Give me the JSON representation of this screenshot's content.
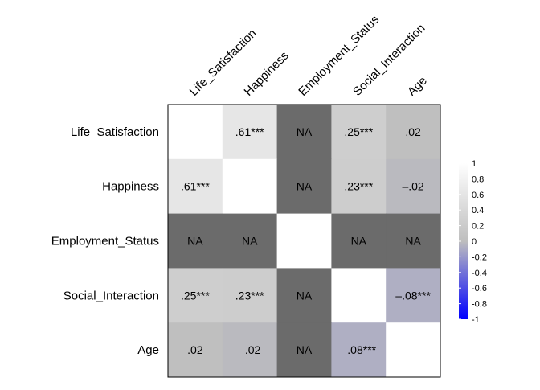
{
  "chart_data": {
    "type": "heatmap",
    "title": "",
    "variables": [
      "Life_Satisfaction",
      "Happiness",
      "Employment_Status",
      "Social_Interaction",
      "Age"
    ],
    "matrix": [
      [
        null,
        0.61,
        null,
        0.25,
        0.02
      ],
      [
        0.61,
        null,
        null,
        0.23,
        -0.02
      ],
      [
        null,
        null,
        null,
        null,
        null
      ],
      [
        0.25,
        0.23,
        null,
        null,
        -0.08
      ],
      [
        0.02,
        -0.02,
        null,
        -0.08,
        null
      ]
    ],
    "labels": [
      [
        "",
        ".61***",
        "NA",
        ".25***",
        ".02"
      ],
      [
        ".61***",
        "",
        "NA",
        ".23***",
        "–.02"
      ],
      [
        "NA",
        "NA",
        "",
        "NA",
        "NA"
      ],
      [
        ".25***",
        ".23***",
        "NA",
        "",
        "–.08***"
      ],
      [
        ".02",
        "–.02",
        "NA",
        "–.08***",
        ""
      ]
    ],
    "na_label": "NA",
    "legend": {
      "range": [
        -1,
        1
      ],
      "ticks": [
        "1",
        "0.8",
        "0.6",
        "0.4",
        "0.2",
        "0",
        "-0.2",
        "-0.4",
        "-0.6",
        "-0.8",
        "-1"
      ],
      "placement": "right"
    },
    "colors": {
      "positive_high": "#ffffff",
      "zero": "#bebebe",
      "negative_low": "#0000ff",
      "na": "#6b6b6b",
      "diagonal": "#ffffff",
      "border": "#000000"
    }
  }
}
